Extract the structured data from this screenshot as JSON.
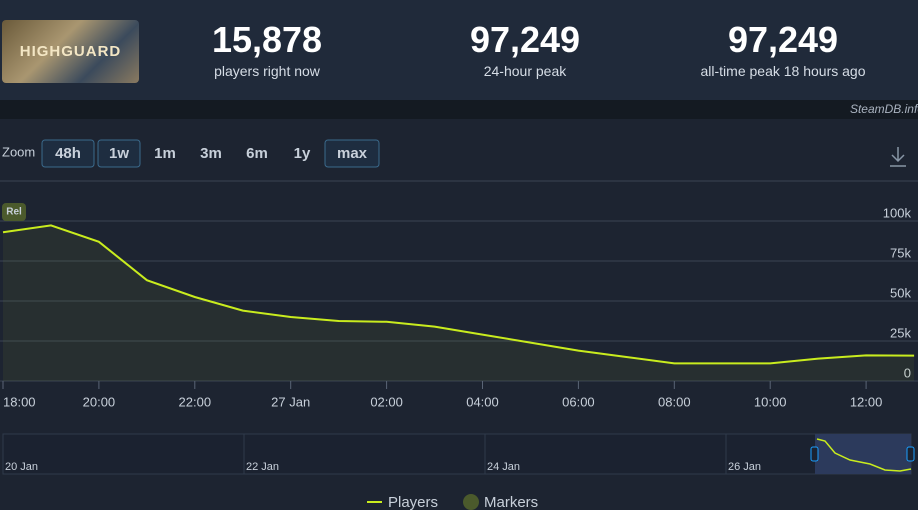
{
  "header": {
    "game_logo": "HIGHGUARD",
    "stats": [
      {
        "value": "15,878",
        "label": "players right now"
      },
      {
        "value": "97,249",
        "label": "24-hour peak"
      },
      {
        "value": "97,249",
        "label": "all-time peak 18 hours ago"
      }
    ],
    "credit": "SteamDB.info"
  },
  "zoom": {
    "label": "Zoom",
    "options": [
      "48h",
      "1w",
      "1m",
      "3m",
      "6m",
      "1y",
      "max"
    ]
  },
  "marker_label": "Rel",
  "navigator": {
    "labels": [
      "20 Jan",
      "22 Jan",
      "24 Jan",
      "26 Jan"
    ]
  },
  "chart_data": {
    "type": "line",
    "categories": [
      "18:00",
      null,
      "20:00",
      null,
      "22:00",
      null,
      "27 Jan",
      null,
      "02:00",
      null,
      "04:00",
      null,
      "06:00",
      null,
      "08:00",
      null,
      "10:00",
      null,
      "12:00",
      null
    ],
    "series": [
      {
        "name": "Players",
        "color": "#c9ec1e",
        "values": [
          93000,
          97249,
          87000,
          63000,
          52500,
          44000,
          40000,
          37500,
          37000,
          34000,
          29000,
          24000,
          19000,
          15000,
          11000,
          11000,
          11000,
          14000,
          16000,
          15878
        ]
      }
    ],
    "markers": {
      "name": "Markers",
      "color": "#4b5a2c"
    },
    "ylim": [
      0,
      100000
    ],
    "yticks": [
      0,
      {
        "value": 25000,
        "label": "25k"
      },
      {
        "value": 50000,
        "label": "50k"
      },
      {
        "value": 75000,
        "label": "75k"
      },
      {
        "value": 100000,
        "label": "100k"
      }
    ],
    "grid": true
  }
}
